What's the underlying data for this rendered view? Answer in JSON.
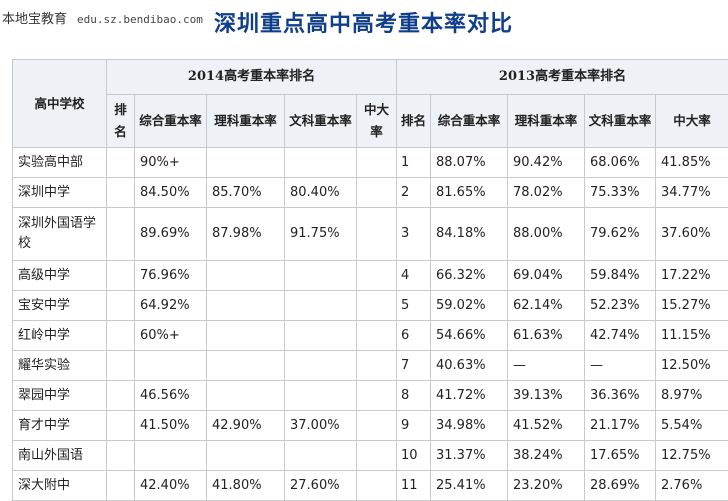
{
  "watermark": {
    "site": "本地宝教育",
    "domain": "edu.sz.bendibao.com"
  },
  "page_title": "深圳重点高中高考重本率对比",
  "table": {
    "school_header": "高中学校",
    "group_2014": "2014高考重本率排名",
    "group_2013": "2013高考重本率排名",
    "cols_2014": [
      "排名",
      "综合重本率",
      "理科重本率",
      "文科重本率",
      "中大率"
    ],
    "cols_2013": [
      "排名",
      "综合重本率",
      "理科重本率",
      "文科重本率",
      "中大率"
    ],
    "rows": [
      [
        "实验高中部",
        "",
        "90%+",
        "",
        "",
        "",
        "1",
        "88.07%",
        "90.42%",
        "68.06%",
        "41.85%"
      ],
      [
        "深圳中学",
        "",
        "84.50%",
        "85.70%",
        "80.40%",
        "",
        "2",
        "81.65%",
        "78.02%",
        "75.33%",
        "34.77%"
      ],
      [
        "深圳外国语学校",
        "",
        "89.69%",
        "87.98%",
        "91.75%",
        "",
        "3",
        "84.18%",
        "88.00%",
        "79.62%",
        "37.60%"
      ],
      [
        "高级中学",
        "",
        "76.96%",
        "",
        "",
        "",
        "4",
        "66.32%",
        "69.04%",
        "59.84%",
        "17.22%"
      ],
      [
        "宝安中学",
        "",
        "64.92%",
        "",
        "",
        "",
        "5",
        "59.02%",
        "62.14%",
        "52.23%",
        "15.27%"
      ],
      [
        "红岭中学",
        "",
        "60%+",
        "",
        "",
        "",
        "6",
        "54.66%",
        "61.63%",
        "42.74%",
        "11.15%"
      ],
      [
        "耀华实验",
        "",
        "",
        "",
        "",
        "",
        "7",
        "40.63%",
        "—",
        "—",
        "12.50%"
      ],
      [
        "翠园中学",
        "",
        "46.56%",
        "",
        "",
        "",
        "8",
        "41.72%",
        "39.13%",
        "36.36%",
        "8.97%"
      ],
      [
        "育才中学",
        "",
        "41.50%",
        "42.90%",
        "37.00%",
        "",
        "9",
        "34.98%",
        "41.52%",
        "21.17%",
        "5.54%"
      ],
      [
        "南山外国语",
        "",
        "",
        "",
        "",
        "",
        "10",
        "31.37%",
        "38.24%",
        "17.65%",
        "12.75%"
      ],
      [
        "深大附中",
        "",
        "42.40%",
        "41.80%",
        "27.60%",
        "",
        "11",
        "25.41%",
        "23.20%",
        "28.69%",
        "2.76%"
      ]
    ]
  }
}
